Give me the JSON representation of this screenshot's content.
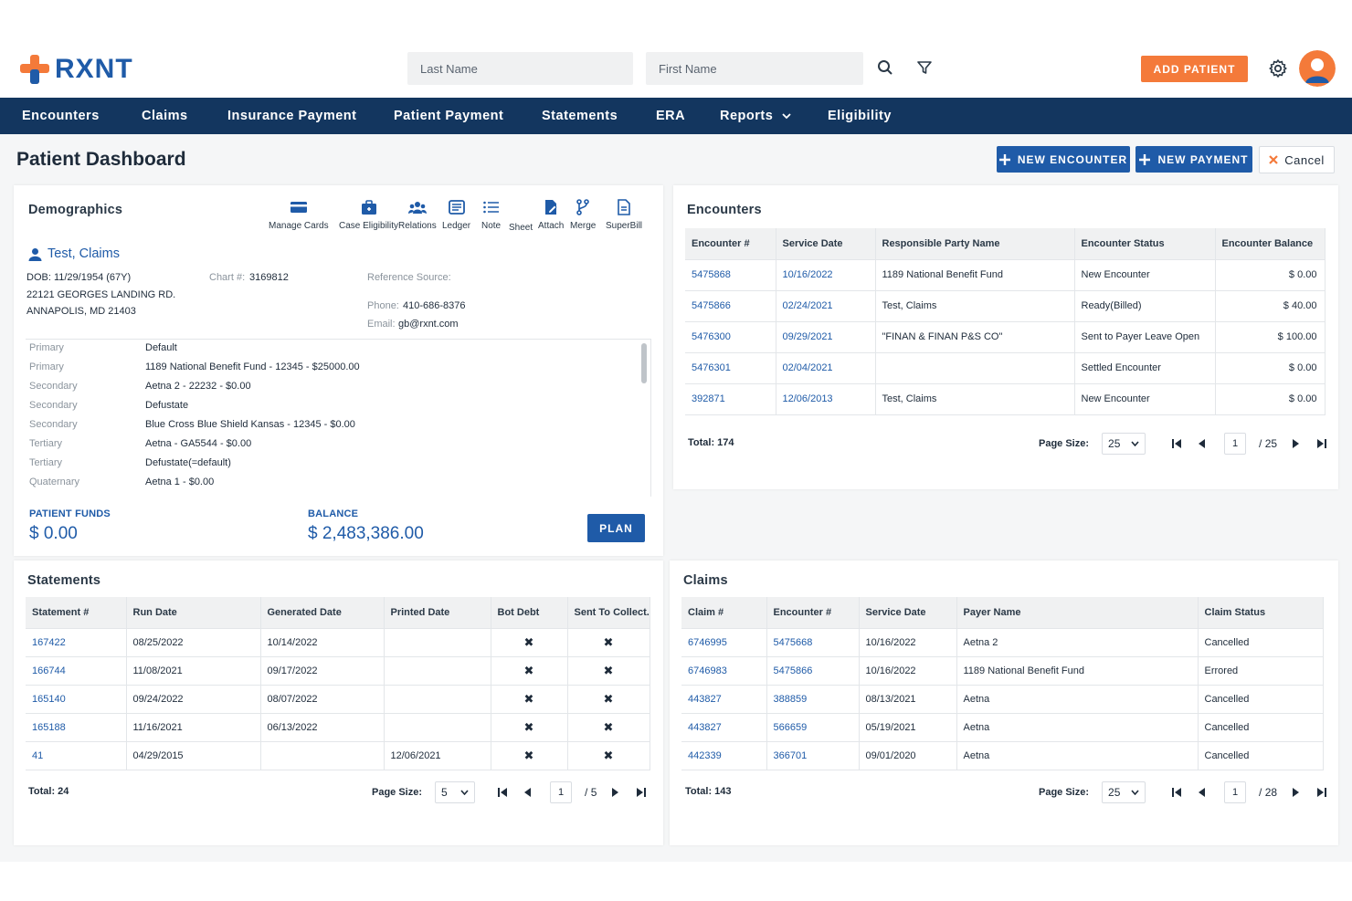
{
  "app": {
    "brand": "RXNT",
    "search_last_placeholder": "Last Name",
    "search_first_placeholder": "First Name",
    "add_patient": "ADD PATIENT",
    "accent": "#1f5ba8",
    "orange": "#f47a3a",
    "nav_bg": "#13365f"
  },
  "nav": [
    "Encounters",
    "Claims",
    "Insurance Payment",
    "Patient Payment",
    "Statements",
    "ERA",
    "Reports",
    "Eligibility"
  ],
  "page": {
    "title": "Patient Dashboard",
    "new_encounter": "NEW ENCOUNTER",
    "new_payment": "NEW PAYMENT",
    "cancel": "Cancel"
  },
  "demographics": {
    "title": "Demographics",
    "tools": [
      "Manage Cards",
      "Case Eligibility",
      "Relations",
      "Ledger",
      "Note",
      "Sheet",
      "Attach",
      "Merge",
      "SuperBill"
    ],
    "patient_name": "Test, Claims",
    "dob": "DOB: 11/29/1954 (67Y)",
    "address1": "22121 GEORGES LANDING RD.",
    "address2": "ANNAPOLIS, MD 21403",
    "chart_label": "Chart #:",
    "chart_value": "3169812",
    "ref_source": "Reference Source:",
    "phone_label": "Phone:",
    "phone_value": "410-686-8376",
    "email_label": "Email:",
    "email_value": "gb@rxnt.com",
    "insurance": [
      {
        "type": "Primary",
        "value": "Default"
      },
      {
        "type": "Primary",
        "value": "1189 National Benefit Fund - 12345 - $25000.00"
      },
      {
        "type": "Secondary",
        "value": "Aetna 2 - 22232 - $0.00"
      },
      {
        "type": "Secondary",
        "value": "Defustate"
      },
      {
        "type": "Secondary",
        "value": "Blue Cross Blue Shield Kansas - 12345 - $0.00"
      },
      {
        "type": "Tertiary",
        "value": "Aetna - GA5544 - $0.00"
      },
      {
        "type": "Tertiary",
        "value": "Defustate(=default)"
      },
      {
        "type": "Quaternary",
        "value": "Aetna 1 - $0.00"
      }
    ],
    "patient_funds_label": "PATIENT FUNDS",
    "patient_funds_value": "$ 0.00",
    "balance_label": "BALANCE",
    "balance_value": "$ 2,483,386.00",
    "plan": "PLAN"
  },
  "encounters": {
    "title": "Encounters",
    "headers": [
      "Encounter #",
      "Service Date",
      "Responsible Party Name",
      "Encounter Status",
      "Encounter Balance"
    ],
    "rows": [
      [
        "5475868",
        "10/16/2022",
        "1189 National Benefit Fund",
        "New Encounter",
        "$ 0.00"
      ],
      [
        "5475866",
        "02/24/2021",
        "Test, Claims",
        "Ready(Billed)",
        "$ 40.00"
      ],
      [
        "5476300",
        "09/29/2021",
        "\"FINAN & FINAN P&S CO\"",
        "Sent to Payer Leave Open",
        "$ 100.00"
      ],
      [
        "5476301",
        "02/04/2021",
        "",
        "Settled Encounter",
        "$ 0.00"
      ],
      [
        "392871",
        "12/06/2013",
        "Test, Claims",
        "New Encounter",
        "$ 0.00"
      ]
    ],
    "total": "Total: 174",
    "page_size_label": "Page Size:",
    "page_size": "25",
    "page": "1",
    "of": "/ 25"
  },
  "statements": {
    "title": "Statements",
    "headers": [
      "Statement #",
      "Run Date",
      "Generated Date",
      "Printed Date",
      "Bot Debt",
      "Sent To Collect."
    ],
    "rows": [
      [
        "167422",
        "08/25/2022",
        "10/14/2022",
        "",
        "✖",
        "✖"
      ],
      [
        "166744",
        "11/08/2021",
        "09/17/2022",
        "",
        "✖",
        "✖"
      ],
      [
        "165140",
        "09/24/2022",
        "08/07/2022",
        "",
        "✖",
        "✖"
      ],
      [
        "165188",
        "11/16/2021",
        "06/13/2022",
        "",
        "✖",
        "✖"
      ],
      [
        "41",
        "04/29/2015",
        "",
        "12/06/2021",
        "✖",
        "✖"
      ]
    ],
    "total": "Total: 24",
    "page_size_label": "Page Size:",
    "page_size": "5",
    "page": "1",
    "of": "/ 5"
  },
  "claims": {
    "title": "Claims",
    "headers": [
      "Claim #",
      "Encounter #",
      "Service Date",
      "Payer Name",
      "Claim Status"
    ],
    "rows": [
      [
        "6746995",
        "5475668",
        "10/16/2022",
        "Aetna 2",
        "Cancelled"
      ],
      [
        "6746983",
        "5475866",
        "10/16/2022",
        "1189 National Benefit Fund",
        "Errored"
      ],
      [
        "443827",
        "388859",
        "08/13/2021",
        "Aetna",
        "Cancelled"
      ],
      [
        "443827",
        "566659",
        "05/19/2021",
        "Aetna",
        "Cancelled"
      ],
      [
        "442339",
        "366701",
        "09/01/2020",
        "Aetna",
        "Cancelled"
      ]
    ],
    "total": "Total: 143",
    "page_size_label": "Page Size:",
    "page_size": "25",
    "page": "1",
    "of": "/ 28"
  }
}
